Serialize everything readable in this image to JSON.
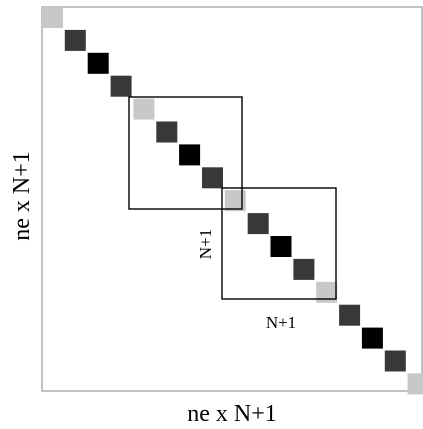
{
  "labels": {
    "x_axis": "ne x N+1",
    "y_axis": "ne x N+1",
    "block_side": "N+1",
    "block_bottom": "N+1"
  },
  "colors": {
    "background": "#ffffff",
    "frame": "#9a9a9a",
    "block_outline": "#000000",
    "cell_light": "#c8c8c8",
    "cell_dark": "#383838",
    "cell_black": "#000000"
  },
  "diagonal_cells": [
    "light",
    "dark",
    "black",
    "dark",
    "light",
    "dark",
    "black",
    "dark",
    "light",
    "dark",
    "black",
    "dark",
    "light",
    "dark",
    "black",
    "dark",
    "light"
  ]
}
